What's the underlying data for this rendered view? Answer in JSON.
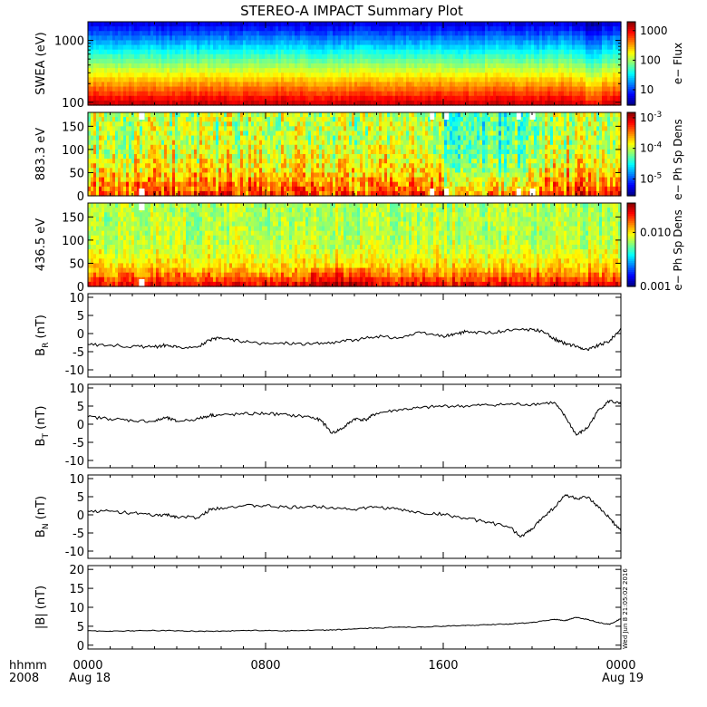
{
  "title": "STEREO-A IMPACT Summary Plot",
  "footer": {
    "hhmm_label": "hhmm",
    "year_label": "2008",
    "start_date": "Aug 18",
    "end_date": "Aug 19"
  },
  "timestamp": "Wed Jun 8 21:05:02 2016",
  "chart_data": [
    {
      "type": "heatmap",
      "panel": "swea",
      "ylabel": "SWEA (eV)",
      "yscale": "log",
      "ylim": [
        90,
        2000
      ],
      "yticks": [
        {
          "v": 100,
          "label": "100"
        },
        {
          "v": 1000,
          "label": "1000"
        }
      ],
      "colorbar": {
        "title": "e− Flux",
        "scale": "log",
        "range": [
          3,
          2000
        ],
        "ticks": [
          {
            "v": 10,
            "label": "10"
          },
          {
            "v": 100,
            "label": "100"
          },
          {
            "v": 1000,
            "label": "1000"
          }
        ]
      },
      "x_hours": [
        0,
        24
      ]
    },
    {
      "type": "heatmap",
      "panel": "pad_883",
      "ylabel": "883.3 eV",
      "ylim": [
        0,
        180
      ],
      "yticks": [
        {
          "v": 0,
          "label": "0"
        },
        {
          "v": 50,
          "label": "50"
        },
        {
          "v": 100,
          "label": "100"
        },
        {
          "v": 150,
          "label": "150"
        }
      ],
      "colorbar": {
        "title": "e− Ph Sp Dens",
        "scale": "log",
        "range": [
          2.8e-06,
          0.0015
        ],
        "ticks": [
          {
            "v": 1e-05,
            "label": "10",
            "sup": "-5"
          },
          {
            "v": 0.0001,
            "label": "10",
            "sup": "-4"
          },
          {
            "v": 0.001,
            "label": "10",
            "sup": "-3"
          }
        ]
      },
      "gaps_hours": [
        [
          2.3,
          2.55
        ],
        [
          15.4,
          15.6
        ],
        [
          16.05,
          16.25
        ],
        [
          19.3,
          19.5
        ],
        [
          19.9,
          20.15
        ]
      ]
    },
    {
      "type": "heatmap",
      "panel": "pad_436",
      "ylabel": "436.5 eV",
      "ylim": [
        0,
        180
      ],
      "yticks": [
        {
          "v": 0,
          "label": "0"
        },
        {
          "v": 50,
          "label": "50"
        },
        {
          "v": 100,
          "label": "100"
        },
        {
          "v": 150,
          "label": "150"
        }
      ],
      "colorbar": {
        "title": "e− Ph Sp Dens",
        "scale": "log",
        "range": [
          0.001,
          0.035
        ],
        "ticks": [
          {
            "v": 0.001,
            "label": "0.001"
          },
          {
            "v": 0.01,
            "label": "0.010"
          }
        ]
      },
      "gaps_hours": [
        [
          2.3,
          2.55
        ]
      ]
    },
    {
      "type": "line",
      "panel": "br",
      "ylabel": "B",
      "ylabel_sub": "R",
      "ylabel_unit": " (nT)",
      "ylim": [
        -12,
        11
      ],
      "yticks": [
        -10,
        -5,
        0,
        5,
        10
      ],
      "x": [
        0,
        1,
        2,
        3,
        3.5,
        4,
        5,
        5.5,
        6,
        7,
        8,
        9,
        10,
        11,
        12,
        13,
        14,
        15,
        16,
        16.5,
        17,
        18,
        19,
        20,
        20.5,
        21,
        21.5,
        22,
        22.5,
        23,
        23.5,
        24
      ],
      "y": [
        -3,
        -3.2,
        -3.5,
        -3.7,
        -3.2,
        -3.8,
        -3.5,
        -1.8,
        -1.2,
        -2.2,
        -2.8,
        -2.6,
        -2.9,
        -2.4,
        -1.8,
        -0.8,
        -1.2,
        0.2,
        -0.8,
        -0.2,
        0.5,
        0.2,
        0.8,
        1.2,
        0.5,
        -1.5,
        -2.8,
        -3.5,
        -4.5,
        -3.2,
        -2,
        1.5
      ]
    },
    {
      "type": "line",
      "panel": "bt",
      "ylabel": "B",
      "ylabel_sub": "T",
      "ylabel_unit": " (nT)",
      "ylim": [
        -12,
        11
      ],
      "yticks": [
        -10,
        -5,
        0,
        5,
        10
      ],
      "x": [
        0,
        1,
        2,
        3,
        3.5,
        4,
        5,
        5.5,
        6,
        7,
        8,
        9,
        10,
        10.5,
        11,
        11.5,
        12,
        12.5,
        13,
        14,
        15,
        16,
        17,
        18,
        19,
        20,
        21,
        21.5,
        22,
        22.5,
        23,
        23.5,
        24
      ],
      "y": [
        2,
        1.5,
        1,
        0.8,
        1.8,
        0.8,
        1.5,
        2.5,
        2.5,
        2.8,
        3,
        2.5,
        2,
        1,
        -2.5,
        -1,
        1.5,
        1.2,
        3,
        4,
        4.5,
        5,
        5,
        5.3,
        5.5,
        5.5,
        6,
        2,
        -3,
        -1,
        4,
        6.5,
        5.5
      ]
    },
    {
      "type": "line",
      "panel": "bn",
      "ylabel": "B",
      "ylabel_sub": "N",
      "ylabel_unit": " (nT)",
      "ylim": [
        -12,
        11
      ],
      "yticks": [
        -10,
        -5,
        0,
        5,
        10
      ],
      "x": [
        0,
        1,
        2,
        3,
        3.5,
        4,
        5,
        5.5,
        6,
        7,
        8,
        9,
        10,
        11,
        12,
        13,
        14,
        15,
        16,
        17,
        18,
        19,
        19.5,
        20,
        20.5,
        21,
        21.5,
        22,
        22.5,
        23,
        23.5,
        24
      ],
      "y": [
        1,
        1,
        0.5,
        -0.2,
        0,
        -0.5,
        -0.8,
        1.5,
        2,
        2.5,
        2.5,
        2,
        2.3,
        2.1,
        1.5,
        2.2,
        1.5,
        0.5,
        0.2,
        -1,
        -2,
        -3.5,
        -6,
        -4,
        -0.5,
        2,
        5.5,
        4.5,
        4.8,
        2,
        -1,
        -4.5
      ]
    },
    {
      "type": "line",
      "panel": "bmag",
      "ylabel": "|B| (nT)",
      "ylim": [
        -1,
        21
      ],
      "yticks": [
        0,
        5,
        10,
        15,
        20
      ],
      "x": [
        0,
        1,
        2,
        3,
        4,
        5,
        6,
        7,
        8,
        9,
        10,
        11,
        12,
        13,
        14,
        15,
        16,
        17,
        18,
        19,
        20,
        21,
        21.5,
        22,
        22.5,
        23,
        23.5,
        24
      ],
      "y": [
        3.8,
        3.7,
        3.8,
        3.9,
        3.8,
        3.7,
        3.7,
        3.9,
        3.9,
        3.8,
        3.9,
        4,
        4.3,
        4.5,
        4.8,
        4.8,
        5,
        5.2,
        5.4,
        5.6,
        6,
        6.8,
        6.5,
        7.3,
        6.8,
        6,
        5.5,
        7
      ]
    }
  ],
  "x_axis": {
    "ticks": [
      {
        "h": 0,
        "label": "0000"
      },
      {
        "h": 8,
        "label": "0800"
      },
      {
        "h": 16,
        "label": "1600"
      },
      {
        "h": 24,
        "label": "0000"
      }
    ]
  }
}
